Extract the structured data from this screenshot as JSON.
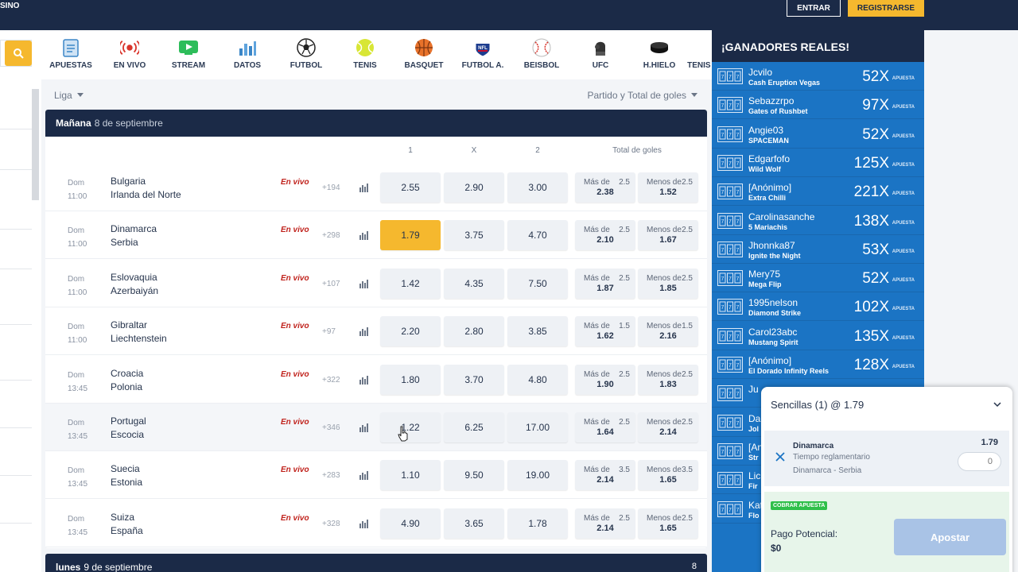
{
  "topbar": {
    "brand": "SINO",
    "login_label": "ENTRAR",
    "register_label": "REGISTRARSE"
  },
  "sports_nav": [
    {
      "label": "APUESTAS",
      "icon": "clipboard-icon"
    },
    {
      "label": "EN VIVO",
      "icon": "live-signal-icon"
    },
    {
      "label": "STREAM",
      "icon": "play-icon"
    },
    {
      "label": "DATOS",
      "icon": "bar-chart-icon"
    },
    {
      "label": "FUTBOL",
      "icon": "soccer-ball-icon"
    },
    {
      "label": "TENIS",
      "icon": "tennis-ball-icon"
    },
    {
      "label": "BASQUET",
      "icon": "basketball-icon"
    },
    {
      "label": "FUTBOL A.",
      "icon": "nfl-shield-icon"
    },
    {
      "label": "BEISBOL",
      "icon": "baseball-icon"
    },
    {
      "label": "UFC",
      "icon": "boxing-glove-icon"
    },
    {
      "label": "H.HIELO",
      "icon": "hockey-puck-icon"
    },
    {
      "label": "TENIS DE MESA",
      "icon": "ping-pong-icon"
    }
  ],
  "filters": {
    "league_label": "Liga",
    "market_label": "Partido y Total de goles"
  },
  "day_section": {
    "day": "Mañana",
    "date": "8 de septiembre",
    "col_1": "1",
    "col_x": "X",
    "col_2": "2",
    "col_totals": "Total de goles"
  },
  "matches": [
    {
      "day": "Dom",
      "time": "11:00",
      "home": "Bulgaria",
      "away": "Irlanda del Norte",
      "live": "En vivo",
      "more": "+194",
      "o1": "2.55",
      "ox": "2.90",
      "o2": "3.00",
      "over_label": "Más de",
      "over_line": "2.5",
      "over": "2.38",
      "under_label": "Menos de",
      "under_line": "2.5",
      "under": "1.52"
    },
    {
      "day": "Dom",
      "time": "11:00",
      "home": "Dinamarca",
      "away": "Serbia",
      "live": "En vivo",
      "more": "+298",
      "o1": "1.79",
      "ox": "3.75",
      "o2": "4.70",
      "over_label": "Más de",
      "over_line": "2.5",
      "over": "2.10",
      "under_label": "Menos de",
      "under_line": "2.5",
      "under": "1.67"
    },
    {
      "day": "Dom",
      "time": "11:00",
      "home": "Eslovaquia",
      "away": "Azerbaiyán",
      "live": "En vivo",
      "more": "+107",
      "o1": "1.42",
      "ox": "4.35",
      "o2": "7.50",
      "over_label": "Más de",
      "over_line": "2.5",
      "over": "1.87",
      "under_label": "Menos de",
      "under_line": "2.5",
      "under": "1.85"
    },
    {
      "day": "Dom",
      "time": "11:00",
      "home": "Gibraltar",
      "away": "Liechtenstein",
      "live": "En vivo",
      "more": "+97",
      "o1": "2.20",
      "ox": "2.80",
      "o2": "3.85",
      "over_label": "Más de",
      "over_line": "1.5",
      "over": "1.62",
      "under_label": "Menos de",
      "under_line": "1.5",
      "under": "2.16"
    },
    {
      "day": "Dom",
      "time": "13:45",
      "home": "Croacia",
      "away": "Polonia",
      "live": "En vivo",
      "more": "+322",
      "o1": "1.80",
      "ox": "3.70",
      "o2": "4.80",
      "over_label": "Más de",
      "over_line": "2.5",
      "over": "1.90",
      "under_label": "Menos de",
      "under_line": "2.5",
      "under": "1.83"
    },
    {
      "day": "Dom",
      "time": "13:45",
      "home": "Portugal",
      "away": "Escocia",
      "live": "En vivo",
      "more": "+346",
      "o1": "1.22",
      "ox": "6.25",
      "o2": "17.00",
      "over_label": "Más de",
      "over_line": "2.5",
      "over": "1.64",
      "under_label": "Menos de",
      "under_line": "2.5",
      "under": "2.14"
    },
    {
      "day": "Dom",
      "time": "13:45",
      "home": "Suecia",
      "away": "Estonia",
      "live": "En vivo",
      "more": "+283",
      "o1": "1.10",
      "ox": "9.50",
      "o2": "19.00",
      "over_label": "Más de",
      "over_line": "3.5",
      "over": "2.14",
      "under_label": "Menos de",
      "under_line": "3.5",
      "under": "1.65"
    },
    {
      "day": "Dom",
      "time": "13:45",
      "home": "Suiza",
      "away": "España",
      "live": "En vivo",
      "more": "+328",
      "o1": "4.90",
      "ox": "3.65",
      "o2": "1.78",
      "over_label": "Más de",
      "over_line": "2.5",
      "over": "2.14",
      "under_label": "Menos de",
      "under_line": "2.5",
      "under": "1.65"
    }
  ],
  "next_day": {
    "day": "lunes",
    "date": "9 de septiembre",
    "count": "8"
  },
  "winners": {
    "title": "¡GANADORES REALES!",
    "bet_label": "APUESTA",
    "rows": [
      {
        "user": "Jcvilo",
        "game": "Cash Eruption Vegas",
        "mult": "52X"
      },
      {
        "user": "Sebazzrpo",
        "game": "Gates of Rushbet",
        "mult": "97X"
      },
      {
        "user": "Angie03",
        "game": "SPACEMAN",
        "mult": "52X"
      },
      {
        "user": "Edgarfofo",
        "game": "Wild Wolf",
        "mult": "125X"
      },
      {
        "user": "[Anónimo]",
        "game": "Extra Chilli",
        "mult": "221X"
      },
      {
        "user": "Carolinasanche",
        "game": "5 Mariachis",
        "mult": "138X"
      },
      {
        "user": "Jhonnka87",
        "game": "Ignite the Night",
        "mult": "53X"
      },
      {
        "user": "Mery75",
        "game": "Mega Flip",
        "mult": "52X"
      },
      {
        "user": "1995nelson",
        "game": "Diamond Strike",
        "mult": "102X"
      },
      {
        "user": "Carol23abc",
        "game": "Mustang Spirit",
        "mult": "135X"
      },
      {
        "user": "[Anónimo]",
        "game": "El Dorado Infinity Reels",
        "mult": "128X"
      },
      {
        "user": "Ju",
        "game": "",
        "mult": ""
      },
      {
        "user": "Da",
        "game": "Jol",
        "mult": ""
      },
      {
        "user": "[An",
        "game": "Str",
        "mult": ""
      },
      {
        "user": "Lic",
        "game": "Fir",
        "mult": ""
      },
      {
        "user": "Kat",
        "game": "Flo",
        "mult": ""
      }
    ]
  },
  "betslip": {
    "header": "Sencillas (1) @ 1.79",
    "team": "Dinamarca",
    "market": "Tiempo reglamentario",
    "match": "Dinamarca - Serbia",
    "odd": "1.79",
    "stake_placeholder": "0",
    "cashout_badge": "COBRAR APUESTA",
    "payout_label": "Pago Potencial:",
    "payout_value": "$0",
    "bet_button": "Apostar"
  },
  "colors": {
    "navy": "#1b2a47",
    "accent": "#f5b82e",
    "winners_blue": "#1b74c4",
    "live_red": "#c0221c"
  }
}
